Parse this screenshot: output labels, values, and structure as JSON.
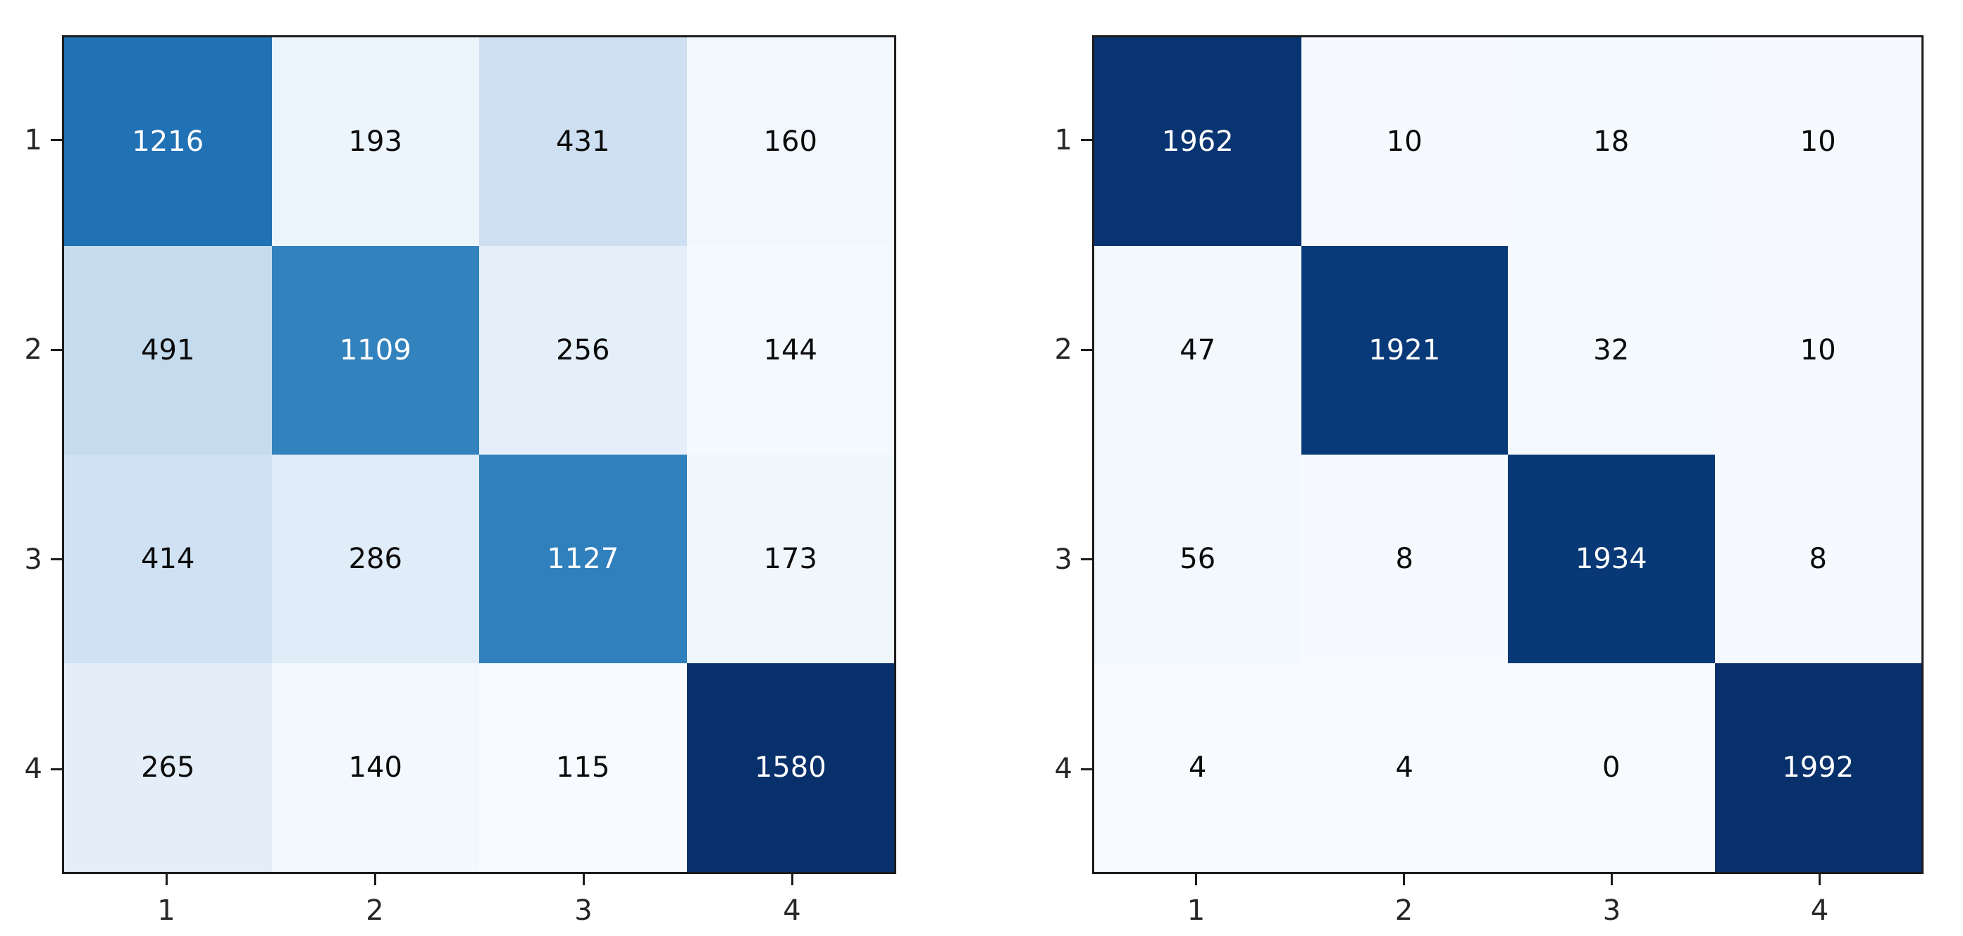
{
  "figure": {
    "background": "#ffffff",
    "colors": {
      "spine": "#1c1c1c",
      "tick_mark": "#1c1c1c",
      "tick_label": "#262626",
      "cell_text_dark": "#0a0a0a",
      "cell_text_light": "#ffffff",
      "colormap_low": "#f7fbff",
      "colormap_high": "#08306b"
    }
  },
  "chart_data": [
    {
      "type": "heatmap",
      "name": "confusion-matrix-left",
      "title": "",
      "xlabel": "",
      "ylabel": "",
      "colormap": "Blues",
      "vmin": 115,
      "vmax": 1580,
      "x_ticklabels": [
        "1",
        "2",
        "3",
        "4"
      ],
      "y_ticklabels": [
        "1",
        "2",
        "3",
        "4"
      ],
      "values": [
        [
          1216,
          193,
          431,
          160
        ],
        [
          491,
          1109,
          256,
          144
        ],
        [
          414,
          286,
          1127,
          173
        ],
        [
          265,
          140,
          115,
          1580
        ]
      ],
      "cell_colors": [
        [
          "#2171b5",
          "#ecf4fc",
          "#cddff1",
          "#f1f7fd"
        ],
        [
          "#c5dbee",
          "#3282bd",
          "#e4eff9",
          "#f4f9fe"
        ],
        [
          "#cfe1f3",
          "#e0ecf8",
          "#3080bd",
          "#eff6fc"
        ],
        [
          "#e3eef9",
          "#f3f8fe",
          "#f7fbff",
          "#08306b"
        ]
      ],
      "text_colors": [
        [
          "#ffffff",
          "#0a0a0a",
          "#0a0a0a",
          "#0a0a0a"
        ],
        [
          "#0a0a0a",
          "#ffffff",
          "#0a0a0a",
          "#0a0a0a"
        ],
        [
          "#0a0a0a",
          "#0a0a0a",
          "#ffffff",
          "#0a0a0a"
        ],
        [
          "#0a0a0a",
          "#0a0a0a",
          "#0a0a0a",
          "#ffffff"
        ]
      ]
    },
    {
      "type": "heatmap",
      "name": "confusion-matrix-right",
      "title": "",
      "xlabel": "",
      "ylabel": "",
      "colormap": "Blues",
      "vmin": 0,
      "vmax": 1992,
      "x_ticklabels": [
        "1",
        "2",
        "3",
        "4"
      ],
      "y_ticklabels": [
        "1",
        "2",
        "3",
        "4"
      ],
      "values": [
        [
          1962,
          10,
          18,
          10
        ],
        [
          47,
          1921,
          32,
          10
        ],
        [
          56,
          8,
          1934,
          8
        ],
        [
          4,
          4,
          0,
          1992
        ]
      ],
      "cell_colors": [
        [
          "#083471",
          "#f6fafe",
          "#f5fafe",
          "#f6fafe"
        ],
        [
          "#f3f8fd",
          "#083979",
          "#f4f9fe",
          "#f6fafe"
        ],
        [
          "#f2f8fd",
          "#f6fafe",
          "#083876",
          "#f6fafe"
        ],
        [
          "#f7fafe",
          "#f7fafe",
          "#f7fbff",
          "#08306b"
        ]
      ],
      "text_colors": [
        [
          "#ffffff",
          "#0a0a0a",
          "#0a0a0a",
          "#0a0a0a"
        ],
        [
          "#0a0a0a",
          "#ffffff",
          "#0a0a0a",
          "#0a0a0a"
        ],
        [
          "#0a0a0a",
          "#0a0a0a",
          "#ffffff",
          "#0a0a0a"
        ],
        [
          "#0a0a0a",
          "#0a0a0a",
          "#0a0a0a",
          "#ffffff"
        ]
      ]
    }
  ]
}
